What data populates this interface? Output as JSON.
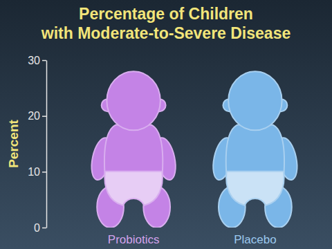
{
  "chart_data": {
    "type": "bar",
    "title": [
      "Percentage of Children",
      "with Moderate-to-Severe Disease"
    ],
    "y_label": "Percent",
    "categories": [
      "Probiotics",
      "Placebo"
    ],
    "values": [
      28,
      28
    ],
    "colors": [
      "#c483e6",
      "#7ab6e8"
    ],
    "ylim": [
      0,
      30
    ],
    "yticks": [
      0,
      10,
      20,
      30
    ],
    "grid": false
  }
}
